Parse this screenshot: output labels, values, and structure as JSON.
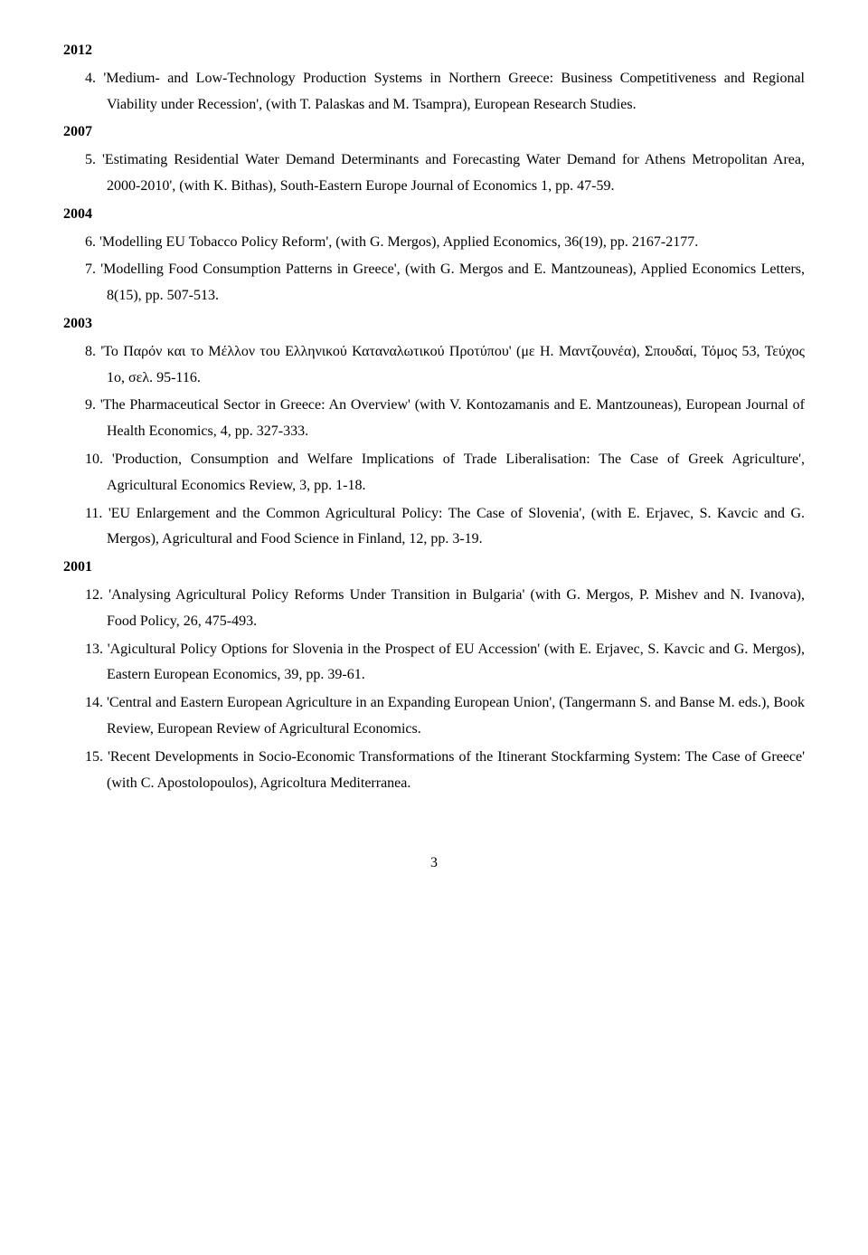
{
  "years": {
    "y2012": "2012",
    "y2007": "2007",
    "y2004": "2004",
    "y2003": "2003",
    "y2001": "2001"
  },
  "entries": {
    "e4": "4. 'Medium- and Low-Technology Production Systems in Northern Greece: Business Competitiveness and Regional Viability under Recession', (with T. Palaskas and M. Tsampra), European Research Studies.",
    "e5": "5. 'Estimating Residential Water Demand Determinants and Forecasting Water Demand for Athens Metropolitan Area, 2000-2010', (with K. Bithas), South-Eastern Europe Journal of Economics 1, pp. 47-59.",
    "e6": "6. 'Modelling EU Tobacco Policy Reform', (with G. Mergos), Applied Economics, 36(19), pp. 2167-2177.",
    "e7": "7. 'Modelling Food Consumption Patterns in Greece', (with G. Mergos and E. Mantzouneas), Applied Economics Letters, 8(15), pp. 507-513.",
    "e8": "8. 'Το Παρόν και το Μέλλον του Ελληνικού Καταναλωτικού Προτύπου' (με Η. Μαντζουνέα), Σπουδαί, Τόμος 53, Τεύχος 1ο, σελ. 95-116.",
    "e9": "9. 'The Pharmaceutical Sector in Greece: An Overview' (with V. Kontozamanis and E. Mantzouneas), European Journal of Health Economics, 4, pp. 327-333.",
    "e10": "10. 'Production, Consumption and Welfare Implications of Trade Liberalisation: The Case of Greek Agriculture', Agricultural Economics Review, 3, pp. 1-18.",
    "e11": "11. 'EU Enlargement and the Common Agricultural Policy: The Case of Slovenia', (with E. Erjavec, S. Kavcic and G. Mergos), Agricultural and Food Science in Finland, 12, pp. 3-19.",
    "e12": "12. 'Analysing Agricultural Policy Reforms Under Transition in Bulgaria' (with G. Mergos, P. Mishev and N. Ivanova), Food Policy, 26, 475-493.",
    "e13": "13. 'Agicultural Policy Options for Slovenia in the Prospect of EU Accession' (with E. Erjavec, S. Kavcic and G. Mergos), Eastern European Economics, 39, pp. 39-61.",
    "e14": "14. 'Central and Eastern European Agriculture in an Expanding European Union', (Tangermann S. and Banse M. eds.), Book Review, European Review of Agricultural Economics.",
    "e15": "15. 'Recent Developments in Socio-Economic Transformations of the Itinerant Stockfarming System: The Case of Greece' (with C. Apostolopoulos), Agricoltura Mediterranea."
  },
  "page_number": "3"
}
